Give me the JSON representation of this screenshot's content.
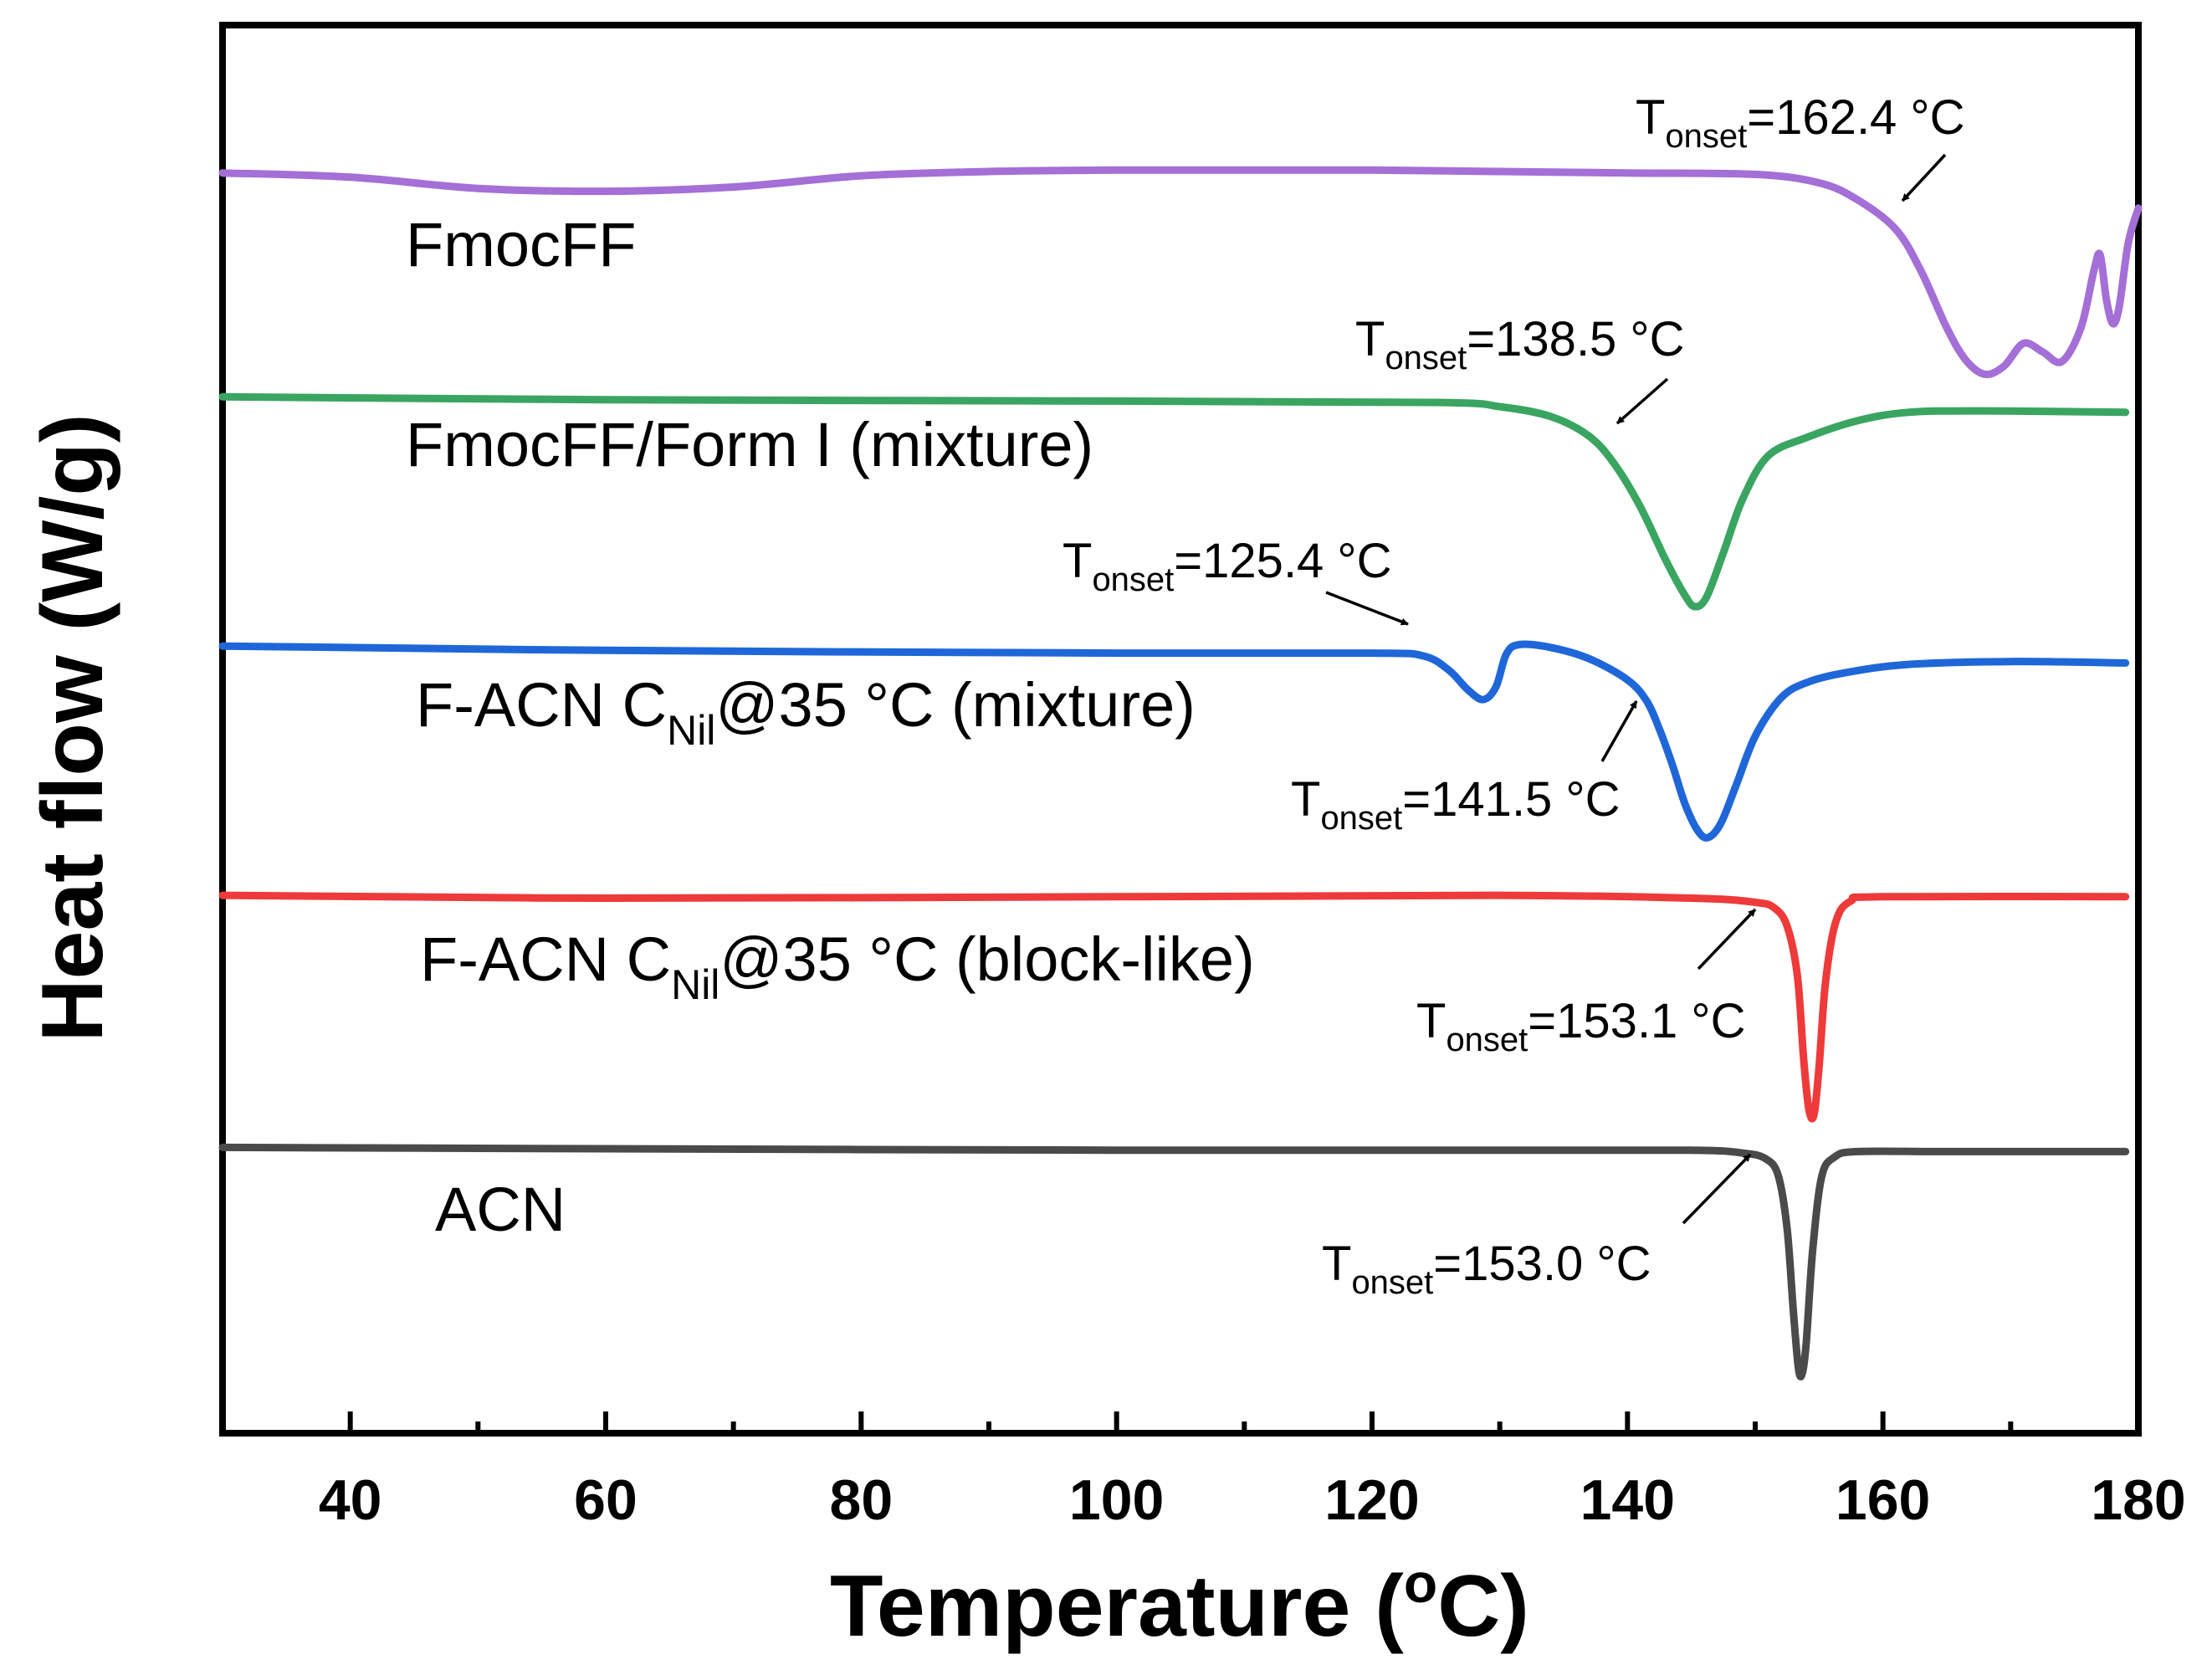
{
  "chart_data": {
    "type": "line",
    "xlabel": "Temperature (",
    "xlabel_sup": "o",
    "xlabel_end": "C)",
    "ylabel": "Heat flow (W/g)",
    "xlim": [
      30,
      180
    ],
    "x_ticks": [
      "40",
      "60",
      "80",
      "100",
      "120",
      "140",
      "160",
      "180"
    ],
    "x_tick_values": [
      40,
      60,
      80,
      100,
      120,
      140,
      160,
      180
    ],
    "x_minor_ticks": [
      50,
      70,
      90,
      110,
      130,
      150,
      170
    ],
    "y_units_note": "offset_heat_flow",
    "ylim": [
      0,
      100
    ],
    "grid": false,
    "legend": "none",
    "series": [
      {
        "name": "FmocFF",
        "name_main": "FmocFF",
        "name_sub": "",
        "name_end": "",
        "color": "#a46fd6",
        "points": [
          [
            30,
            89.5
          ],
          [
            40,
            89.2
          ],
          [
            50,
            88.4
          ],
          [
            60,
            88.2
          ],
          [
            70,
            88.5
          ],
          [
            80,
            89.3
          ],
          [
            90,
            89.6
          ],
          [
            100,
            89.7
          ],
          [
            110,
            89.7
          ],
          [
            120,
            89.7
          ],
          [
            130,
            89.6
          ],
          [
            140,
            89.5
          ],
          [
            150,
            89.4
          ],
          [
            155,
            88.8
          ],
          [
            158,
            87.6
          ],
          [
            161,
            85.5
          ],
          [
            163,
            82.5
          ],
          [
            165,
            78.5
          ],
          [
            166.5,
            76.2
          ],
          [
            168,
            75.2
          ],
          [
            169.5,
            75.8
          ],
          [
            171,
            77.4
          ],
          [
            172.5,
            76.8
          ],
          [
            174,
            76.1
          ],
          [
            175.5,
            78.5
          ],
          [
            176.5,
            82.5
          ],
          [
            177,
            83.7
          ],
          [
            177.5,
            80.5
          ],
          [
            178,
            78.8
          ],
          [
            178.5,
            80.0
          ],
          [
            179.2,
            84.5
          ],
          [
            180,
            87.0
          ]
        ]
      },
      {
        "name": "FmocFF/Form I (mixture)",
        "name_main": "FmocFF/Form I (mixture)",
        "name_sub": "",
        "name_end": "",
        "color": "#3aa560",
        "points": [
          [
            30,
            73.6
          ],
          [
            60,
            73.4
          ],
          [
            100,
            73.3
          ],
          [
            125,
            73.2
          ],
          [
            130,
            72.9
          ],
          [
            134,
            72.2
          ],
          [
            137,
            70.8
          ],
          [
            139,
            68.8
          ],
          [
            141,
            65.8
          ],
          [
            143,
            62.0
          ],
          [
            144.5,
            59.5
          ],
          [
            145.3,
            58.7
          ],
          [
            146.2,
            59.4
          ],
          [
            147.5,
            62.5
          ],
          [
            149,
            66.3
          ],
          [
            151,
            69.4
          ],
          [
            154,
            70.7
          ],
          [
            158,
            71.9
          ],
          [
            162,
            72.5
          ],
          [
            168,
            72.6
          ],
          [
            179,
            72.5
          ]
        ]
      },
      {
        "name": "F-ACN C_Nil@35 °C (mixture)",
        "name_main": "F-ACN C",
        "name_sub": "Nil",
        "name_end": "@35 °C (mixture)",
        "color": "#1f67d8",
        "points": [
          [
            30,
            55.9
          ],
          [
            60,
            55.6
          ],
          [
            100,
            55.4
          ],
          [
            120,
            55.4
          ],
          [
            124,
            55.2
          ],
          [
            126,
            54.2
          ],
          [
            127.5,
            52.8
          ],
          [
            128.7,
            52.1
          ],
          [
            129.7,
            53.0
          ],
          [
            130.5,
            55.3
          ],
          [
            131.5,
            56.0
          ],
          [
            134,
            55.8
          ],
          [
            137,
            55.0
          ],
          [
            140,
            53.5
          ],
          [
            141.5,
            52.0
          ],
          [
            142.5,
            50.0
          ],
          [
            143.5,
            47.5
          ],
          [
            144.5,
            44.7
          ],
          [
            145.5,
            42.8
          ],
          [
            146.3,
            42.3
          ],
          [
            147.3,
            43.3
          ],
          [
            148.5,
            46.0
          ],
          [
            150,
            49.5
          ],
          [
            152,
            52.2
          ],
          [
            154,
            53.3
          ],
          [
            157,
            54.0
          ],
          [
            162,
            54.6
          ],
          [
            170,
            54.8
          ],
          [
            179,
            54.7
          ]
        ]
      },
      {
        "name": "F-ACN C_Nil@35 °C (block-like)",
        "name_main": "F-ACN C",
        "name_sub": "Nil",
        "name_end": "@35 °C (block-like)",
        "color": "#ee3a3a",
        "points": [
          [
            30,
            38.2
          ],
          [
            60,
            38.0
          ],
          [
            100,
            38.1
          ],
          [
            130,
            38.2
          ],
          [
            145,
            38.0
          ],
          [
            150,
            37.7
          ],
          [
            151.5,
            37.3
          ],
          [
            152.5,
            36.0
          ],
          [
            153.3,
            32.5
          ],
          [
            153.8,
            26.5
          ],
          [
            154.2,
            23.0
          ],
          [
            154.6,
            22.6
          ],
          [
            155.0,
            26.0
          ],
          [
            155.5,
            32.0
          ],
          [
            156.3,
            36.3
          ],
          [
            157.5,
            37.8
          ],
          [
            160,
            38.1
          ],
          [
            179,
            38.1
          ]
        ]
      },
      {
        "name": "ACN",
        "name_main": "ACN",
        "name_sub": "",
        "name_end": "",
        "color": "#4a4a4a",
        "points": [
          [
            30,
            20.3
          ],
          [
            60,
            20.2
          ],
          [
            100,
            20.1
          ],
          [
            130,
            20.1
          ],
          [
            145,
            20.1
          ],
          [
            149,
            19.9
          ],
          [
            150.8,
            19.5
          ],
          [
            151.8,
            18.3
          ],
          [
            152.5,
            14.5
          ],
          [
            153,
            8.5
          ],
          [
            153.4,
            4.5
          ],
          [
            153.7,
            4.3
          ],
          [
            154.0,
            6.5
          ],
          [
            154.5,
            13.0
          ],
          [
            155.2,
            18.2
          ],
          [
            156.2,
            19.6
          ],
          [
            158,
            20.0
          ],
          [
            165,
            20.0
          ],
          [
            179,
            20.0
          ]
        ]
      }
    ],
    "annotations": [
      {
        "text_main": "T",
        "text_sub": "onset",
        "text_end": "=162.4 °C",
        "value": 162.4
      },
      {
        "text_main": "T",
        "text_sub": "onset",
        "text_end": "=138.5 °C",
        "value": 138.5
      },
      {
        "text_main": "T",
        "text_sub": "onset",
        "text_end": "=125.4 °C",
        "value": 125.4
      },
      {
        "text_main": "T",
        "text_sub": "onset",
        "text_end": "=141.5 °C",
        "value": 141.5
      },
      {
        "text_main": "T",
        "text_sub": "onset",
        "text_end": "=153.1 °C",
        "value": 153.1
      },
      {
        "text_main": "T",
        "text_sub": "onset",
        "text_end": "=153.0 °C",
        "value": 153.0
      }
    ]
  }
}
